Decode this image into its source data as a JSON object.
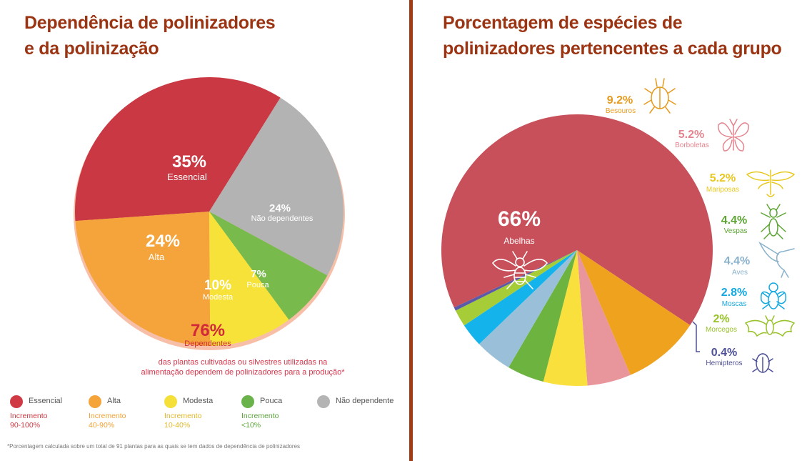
{
  "left": {
    "title_line1": "Dependência de polinizadores",
    "title_line2": "e da polinização",
    "total_pct": "76%",
    "total_label": "Dependentes",
    "note_line1": "das plantas cultivadas ou silvestres utilizadas na",
    "note_line2": "alimentação dependem de polinizadores para a produção*",
    "footnote": "*Porcentagem calculada sobre um total de 91 plantas para as quais se tem dados de dependência de polinizadores",
    "legend": [
      {
        "label": "Essencial",
        "inc1": "Incremento",
        "inc2": "90-100%",
        "color": "#cf3a45",
        "inc_color": "#cf3a45"
      },
      {
        "label": "Alta",
        "inc1": "Incremento",
        "inc2": "40-90%",
        "color": "#f5a43a",
        "inc_color": "#f0a030"
      },
      {
        "label": "Modesta",
        "inc1": "Incremento",
        "inc2": "10-40%",
        "color": "#f5e03a",
        "inc_color": "#e0b82a"
      },
      {
        "label": "Pouca",
        "inc1": "Incremento",
        "inc2": "<10%",
        "color": "#6ab24a",
        "inc_color": "#5aa23a"
      },
      {
        "label": "Não dependente",
        "inc1": "",
        "inc2": "",
        "color": "#b4b4b4",
        "inc_color": "#888888"
      }
    ]
  },
  "right": {
    "title_line1": "Porcentagem de espécies de",
    "title_line2": "polinizadores pertencentes a cada grupo"
  },
  "chart_data": [
    {
      "type": "pie",
      "title": "Dependência de polinizadores e da polinização",
      "categories": [
        "Essencial",
        "Alta",
        "Modesta",
        "Pouca",
        "Não dependentes"
      ],
      "values": [
        35,
        24,
        10,
        7,
        24
      ],
      "labels": [
        "35%",
        "24%",
        "10%",
        "7%",
        "24%"
      ],
      "colors": [
        "#c93843",
        "#f4a43a",
        "#f7e23a",
        "#78bb4c",
        "#b3b3b3"
      ],
      "outer_ring": {
        "label": "Dependentes",
        "value": 76,
        "text": "76%",
        "color": "#f8bfa8"
      }
    },
    {
      "type": "pie",
      "title": "Porcentagem de espécies de polinizadores pertencentes a cada grupo",
      "categories": [
        "Abelhas",
        "Besouros",
        "Borboletas",
        "Mariposas",
        "Vespas",
        "Aves",
        "Moscas",
        "Morcegos",
        "Hemipteros"
      ],
      "values": [
        66,
        9.2,
        5.2,
        5.2,
        4.4,
        4.4,
        2.8,
        2,
        0.4
      ],
      "labels": [
        "66%",
        "9.2%",
        "5.2%",
        "5.2%",
        "4.4%",
        "4.4%",
        "2.8%",
        "2%",
        "0.4%"
      ],
      "colors": [
        "#c8505a",
        "#efa21e",
        "#e8959c",
        "#f9e03c",
        "#6db33f",
        "#99c0d8",
        "#15b3ec",
        "#a6cc38",
        "#5a5aa8"
      ],
      "label_colors": [
        "#ffffff",
        "#e69a1e",
        "#e3848e",
        "#e8c820",
        "#5ca532",
        "#8ab2cc",
        "#14a8e0",
        "#98c22a",
        "#4e5098"
      ]
    }
  ]
}
